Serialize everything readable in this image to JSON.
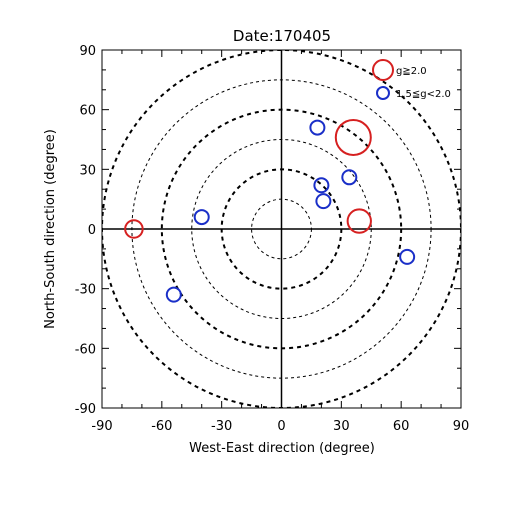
{
  "chart_data": {
    "type": "scatter",
    "title": "Date:170405",
    "xlabel": "West-East direction (degree)",
    "ylabel": "North-South direction (degree)",
    "xlim": [
      -90,
      90
    ],
    "ylim": [
      -90,
      90
    ],
    "x_ticks": [
      -90,
      -60,
      -30,
      0,
      30,
      60,
      90
    ],
    "y_ticks": [
      -90,
      -60,
      -30,
      0,
      30,
      60,
      90
    ],
    "x_tick_labels": [
      "-90",
      "-60",
      "-30",
      "0",
      "30",
      "60",
      "90"
    ],
    "y_tick_labels": [
      "-90",
      "-60",
      "-30",
      "0",
      "30",
      "60",
      "90"
    ],
    "grid": "concentric dashed circles centered at origin",
    "rings": [
      15,
      30,
      45,
      60,
      75,
      90
    ],
    "legend": {
      "placement": "top-right"
    },
    "series": [
      {
        "name": "g≧2.0",
        "color": "#d62020",
        "points": [
          {
            "x": 36,
            "y": 46,
            "size": 3.0
          },
          {
            "x": 39,
            "y": 4,
            "size": 2.0
          },
          {
            "x": -74,
            "y": 0,
            "size": 1.5
          }
        ]
      },
      {
        "name": "1.5≦g<2.0",
        "color": "#1a2fc8",
        "points": [
          {
            "x": 18,
            "y": 51
          },
          {
            "x": 34,
            "y": 26
          },
          {
            "x": 20,
            "y": 22
          },
          {
            "x": 21,
            "y": 14
          },
          {
            "x": -40,
            "y": 6
          },
          {
            "x": 63,
            "y": -14
          },
          {
            "x": -54,
            "y": -33
          }
        ]
      }
    ]
  }
}
